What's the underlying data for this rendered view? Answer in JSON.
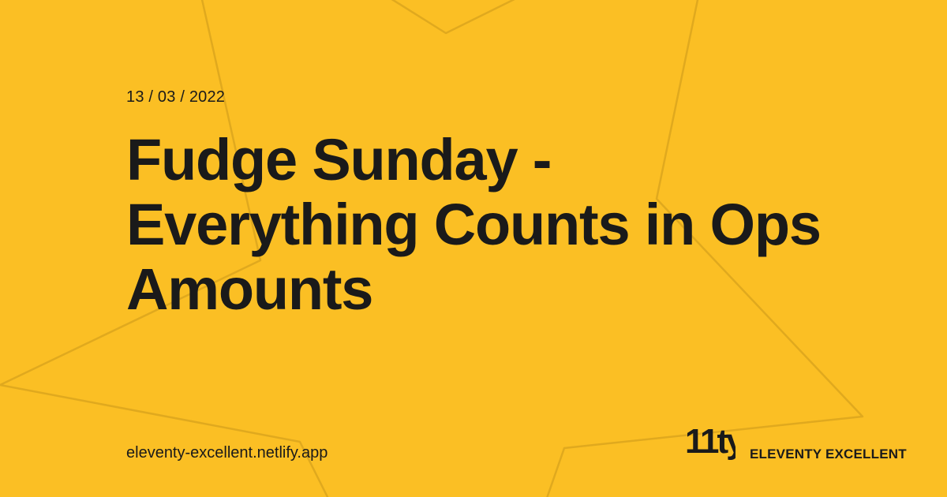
{
  "colors": {
    "background": "#FBBF24",
    "text": "#1a1a1a",
    "decoration_stroke": "#E0A91E"
  },
  "card": {
    "date": "13 / 03 / 2022",
    "title": "Fudge Sunday - Everything Counts in Ops Amounts",
    "site_url": "eleventy-excellent.netlify.app",
    "brand_logo": "11ty",
    "brand_name": "ELEVENTY EXCELLENT",
    "decoration_icon": "star-outline-icon"
  }
}
